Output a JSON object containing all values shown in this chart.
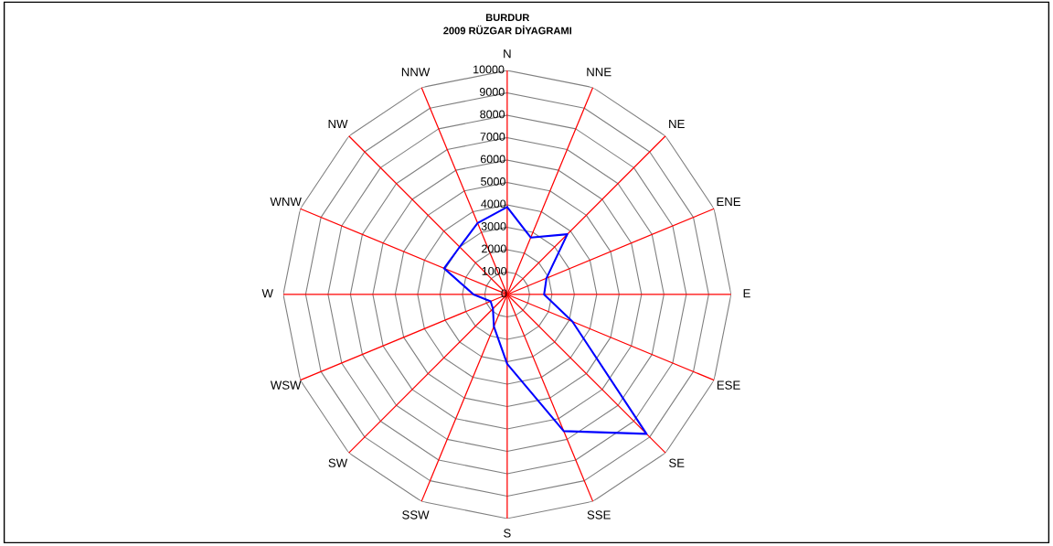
{
  "chart_data": {
    "type": "radar",
    "title": "BURDUR\n2009 RÜZGAR DİYAGRAMI",
    "categories": [
      "N",
      "NNE",
      "NE",
      "ENE",
      "E",
      "ESE",
      "SE",
      "SSE",
      "S",
      "SSW",
      "SW",
      "WSW",
      "W",
      "WNW",
      "NW",
      "NNW"
    ],
    "series": [
      {
        "color": "#0000ff",
        "values": [
          3900,
          2750,
          3800,
          1900,
          1650,
          3150,
          8800,
          6600,
          3100,
          1550,
          900,
          800,
          1500,
          3050,
          3000,
          3450
        ]
      }
    ],
    "ylim": [
      0,
      10000
    ],
    "yticks": [
      0,
      1000,
      2000,
      3000,
      4000,
      5000,
      6000,
      7000,
      8000,
      9000,
      10000
    ],
    "grid": true,
    "marker": "none",
    "line_style": "solid"
  }
}
